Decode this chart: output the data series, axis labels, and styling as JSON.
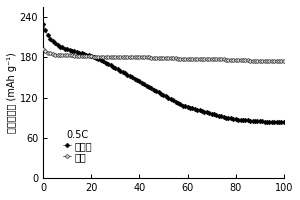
{
  "title": "",
  "xlabel": "",
  "ylabel": "放电比容量 (mAh g⁻¹)",
  "xlim": [
    0,
    100
  ],
  "ylim": [
    0,
    255
  ],
  "yticks": [
    0,
    60,
    120,
    180,
    240
  ],
  "xticks": [
    0,
    20,
    40,
    60,
    80,
    100
  ],
  "legend_title": "0.5C",
  "legend_labels": [
    "未包覆",
    "包覆"
  ],
  "background_color": "#ffffff",
  "uncoated_x": [
    0,
    1,
    2,
    3,
    4,
    5,
    6,
    7,
    8,
    9,
    10,
    11,
    12,
    13,
    14,
    15,
    16,
    17,
    18,
    19,
    20,
    21,
    22,
    23,
    24,
    25,
    26,
    27,
    28,
    29,
    30,
    31,
    32,
    33,
    34,
    35,
    36,
    37,
    38,
    39,
    40,
    41,
    42,
    43,
    44,
    45,
    46,
    47,
    48,
    49,
    50,
    51,
    52,
    53,
    54,
    55,
    56,
    57,
    58,
    59,
    60,
    61,
    62,
    63,
    64,
    65,
    66,
    67,
    68,
    69,
    70,
    71,
    72,
    73,
    74,
    75,
    76,
    77,
    78,
    79,
    80,
    81,
    82,
    83,
    84,
    85,
    86,
    87,
    88,
    89,
    90,
    91,
    92,
    93,
    94,
    95,
    96,
    97,
    98,
    99,
    100
  ],
  "uncoated_y": [
    230,
    220,
    213,
    207,
    204,
    201,
    198,
    196,
    195,
    193,
    192,
    191,
    190,
    189,
    188,
    187,
    186,
    185,
    184,
    183,
    182,
    180,
    179,
    177,
    176,
    174,
    172,
    170,
    168,
    166,
    164,
    162,
    160,
    158,
    156,
    154,
    152,
    150,
    148,
    146,
    144,
    142,
    140,
    138,
    136,
    134,
    132,
    130,
    128,
    126,
    124,
    122,
    120,
    118,
    116,
    114,
    112,
    110,
    108,
    107,
    106,
    105,
    104,
    103,
    102,
    101,
    100,
    99,
    98,
    97,
    96,
    95,
    94,
    93,
    92,
    91,
    90,
    89,
    89,
    88,
    88,
    87,
    87,
    86,
    86,
    86,
    85,
    85,
    85,
    85,
    85,
    85,
    84,
    84,
    84,
    84,
    84,
    84,
    84,
    84,
    84
  ],
  "coated_x": [
    0,
    1,
    2,
    3,
    4,
    5,
    6,
    7,
    8,
    9,
    10,
    11,
    12,
    13,
    14,
    15,
    16,
    17,
    18,
    19,
    20,
    21,
    22,
    23,
    24,
    25,
    26,
    27,
    28,
    29,
    30,
    31,
    32,
    33,
    34,
    35,
    36,
    37,
    38,
    39,
    40,
    41,
    42,
    43,
    44,
    45,
    46,
    47,
    48,
    49,
    50,
    51,
    52,
    53,
    54,
    55,
    56,
    57,
    58,
    59,
    60,
    61,
    62,
    63,
    64,
    65,
    66,
    67,
    68,
    69,
    70,
    71,
    72,
    73,
    74,
    75,
    76,
    77,
    78,
    79,
    80,
    81,
    82,
    83,
    84,
    85,
    86,
    87,
    88,
    89,
    90,
    91,
    92,
    93,
    94,
    95,
    96,
    97,
    98,
    99,
    100
  ],
  "coated_y": [
    193,
    189,
    187,
    186,
    185,
    184,
    184,
    184,
    183,
    183,
    183,
    183,
    183,
    182,
    182,
    182,
    182,
    182,
    182,
    182,
    182,
    181,
    181,
    181,
    181,
    181,
    181,
    181,
    181,
    181,
    181,
    181,
    180,
    180,
    180,
    180,
    180,
    180,
    180,
    180,
    180,
    180,
    180,
    180,
    180,
    179,
    179,
    179,
    179,
    179,
    179,
    179,
    179,
    179,
    179,
    179,
    178,
    178,
    178,
    178,
    178,
    178,
    178,
    178,
    178,
    177,
    177,
    177,
    177,
    177,
    177,
    177,
    177,
    177,
    177,
    177,
    176,
    176,
    176,
    176,
    176,
    176,
    176,
    176,
    176,
    176,
    175,
    175,
    175,
    175,
    175,
    175,
    175,
    175,
    175,
    175,
    175,
    175,
    175,
    175,
    175
  ]
}
